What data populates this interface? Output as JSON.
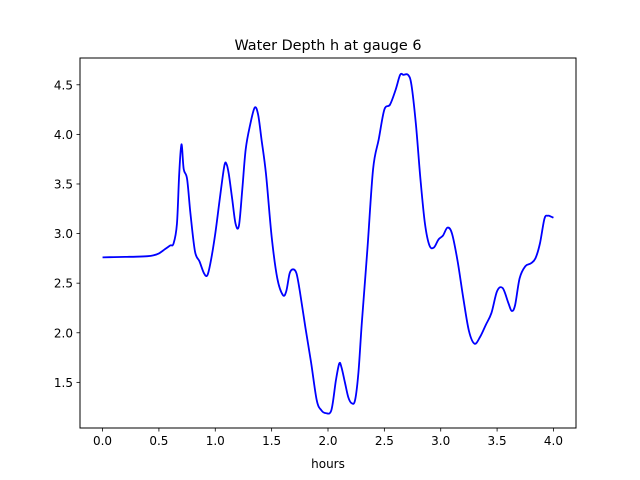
{
  "chart_data": {
    "type": "line",
    "title": "Water Depth h at gauge 6",
    "xlabel": "hours",
    "ylabel": "",
    "xlim": [
      -0.2,
      4.2
    ],
    "ylim": [
      1.04,
      4.77
    ],
    "xticks": [
      0.0,
      0.5,
      1.0,
      1.5,
      2.0,
      2.5,
      3.0,
      3.5,
      4.0
    ],
    "xtick_labels": [
      "0.0",
      "0.5",
      "1.0",
      "1.5",
      "2.0",
      "2.5",
      "3.0",
      "3.5",
      "4.0"
    ],
    "yticks": [
      1.5,
      2.0,
      2.5,
      3.0,
      3.5,
      4.0,
      4.5
    ],
    "ytick_labels": [
      "1.5",
      "2.0",
      "2.5",
      "3.0",
      "3.5",
      "4.0",
      "4.5"
    ],
    "grid": false,
    "legend": "none",
    "series": [
      {
        "color": "#0000ff",
        "x": [
          0.0,
          0.1,
          0.2,
          0.3,
          0.4,
          0.45,
          0.5,
          0.55,
          0.6,
          0.63,
          0.66,
          0.68,
          0.7,
          0.72,
          0.75,
          0.78,
          0.82,
          0.86,
          0.9,
          0.93,
          0.96,
          1.0,
          1.04,
          1.08,
          1.1,
          1.12,
          1.15,
          1.18,
          1.21,
          1.24,
          1.27,
          1.31,
          1.35,
          1.38,
          1.41,
          1.45,
          1.5,
          1.55,
          1.6,
          1.63,
          1.66,
          1.69,
          1.72,
          1.75,
          1.8,
          1.85,
          1.9,
          1.94,
          1.98,
          2.03,
          2.07,
          2.1,
          2.12,
          2.15,
          2.18,
          2.21,
          2.24,
          2.27,
          2.3,
          2.35,
          2.4,
          2.45,
          2.5,
          2.55,
          2.6,
          2.64,
          2.67,
          2.71,
          2.74,
          2.78,
          2.82,
          2.86,
          2.9,
          2.94,
          2.98,
          3.02,
          3.06,
          3.1,
          3.15,
          3.2,
          3.25,
          3.3,
          3.35,
          3.4,
          3.45,
          3.5,
          3.55,
          3.6,
          3.63,
          3.66,
          3.7,
          3.75,
          3.8,
          3.84,
          3.88,
          3.92,
          3.95,
          3.98,
          4.0
        ],
        "y": [
          2.76,
          2.763,
          2.765,
          2.767,
          2.772,
          2.78,
          2.8,
          2.84,
          2.88,
          2.9,
          3.1,
          3.6,
          3.9,
          3.65,
          3.55,
          3.2,
          2.82,
          2.72,
          2.6,
          2.58,
          2.72,
          3.0,
          3.35,
          3.68,
          3.7,
          3.6,
          3.35,
          3.1,
          3.08,
          3.45,
          3.85,
          4.1,
          4.27,
          4.2,
          3.95,
          3.6,
          2.97,
          2.55,
          2.38,
          2.42,
          2.6,
          2.64,
          2.6,
          2.42,
          2.05,
          1.7,
          1.32,
          1.22,
          1.19,
          1.22,
          1.52,
          1.69,
          1.65,
          1.5,
          1.35,
          1.29,
          1.32,
          1.6,
          2.1,
          2.85,
          3.65,
          3.95,
          4.25,
          4.3,
          4.45,
          4.6,
          4.6,
          4.6,
          4.5,
          4.1,
          3.55,
          3.1,
          2.88,
          2.86,
          2.94,
          2.98,
          3.06,
          3.0,
          2.72,
          2.35,
          2.02,
          1.89,
          1.96,
          2.08,
          2.2,
          2.42,
          2.45,
          2.3,
          2.22,
          2.28,
          2.55,
          2.67,
          2.7,
          2.75,
          2.9,
          3.15,
          3.18,
          3.17,
          3.16
        ]
      }
    ]
  }
}
